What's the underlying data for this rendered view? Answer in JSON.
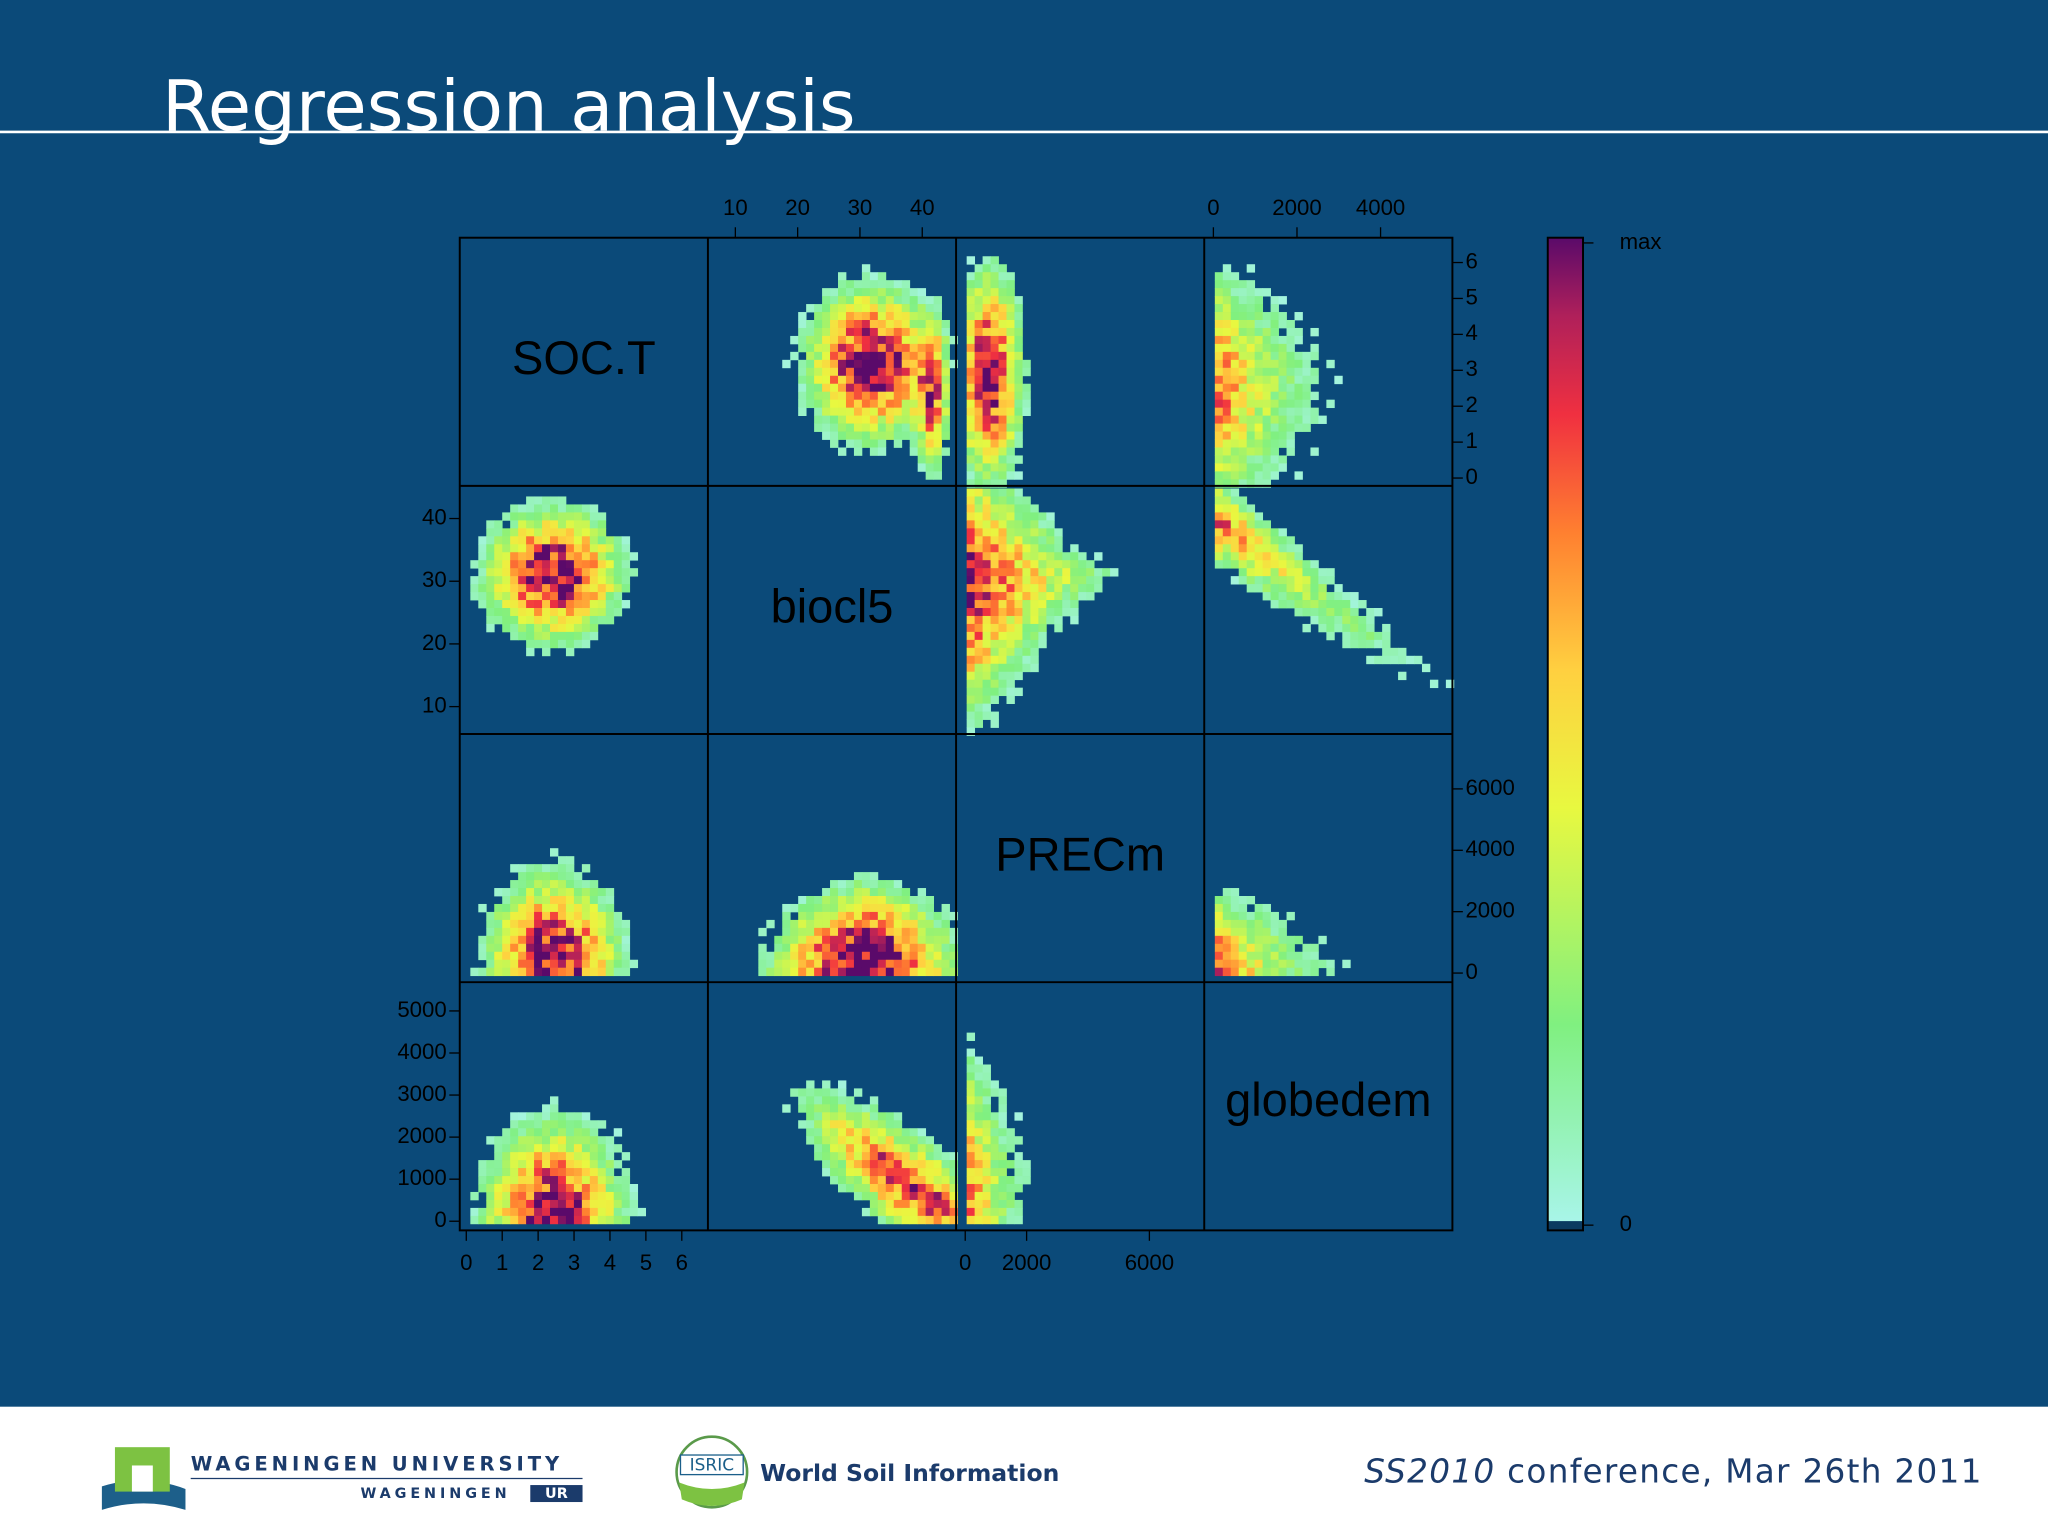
{
  "header": {
    "title": "Regression analysis"
  },
  "plot": {
    "variables": [
      "SOC.T",
      "biocl5",
      "PRECm",
      "globedem"
    ],
    "axes": {
      "soc_x": [
        0,
        1,
        2,
        3,
        4,
        5,
        6
      ],
      "soc_y": [
        0,
        1,
        2,
        3,
        4,
        5,
        6
      ],
      "biocl5_x": [
        10,
        20,
        30,
        40
      ],
      "biocl5_y": [
        10,
        20,
        30,
        40
      ],
      "prec_x": [
        0,
        2000,
        6000
      ],
      "prec_y": [
        0,
        2000,
        4000,
        6000
      ],
      "dem_x": [
        0,
        2000,
        4000
      ],
      "dem_y": [
        0,
        1000,
        2000,
        3000,
        4000,
        5000
      ]
    },
    "colorkey": {
      "max": "max",
      "min": 0
    }
  },
  "footer": {
    "university": "WAGENINGEN UNIVERSITY",
    "university_sub": "WAGENINGEN",
    "university_ur": "UR",
    "isric": "ISRIC",
    "isric_name": "World Soil Information",
    "event": "SS2010",
    "event_rest": "conference, Mar 26th 2011"
  }
}
